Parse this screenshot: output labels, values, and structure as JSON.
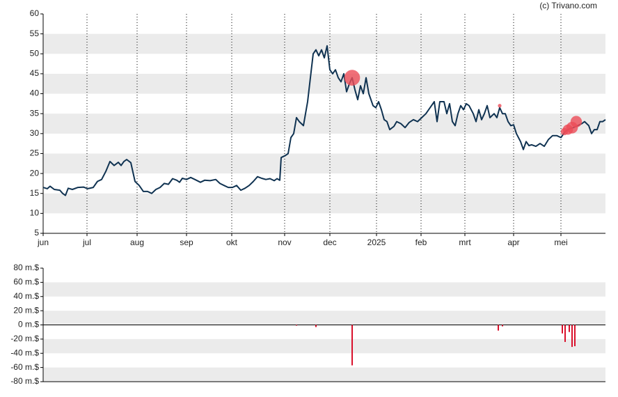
{
  "credit": "(c) Trivano.com",
  "chart_data": [
    {
      "type": "line",
      "xlim": [
        0,
        404
      ],
      "xticks": [
        {
          "value": 0,
          "label": "jun"
        },
        {
          "value": 31.5,
          "label": "jul"
        },
        {
          "value": 67.5,
          "label": "aug"
        },
        {
          "value": 103,
          "label": "sep"
        },
        {
          "value": 135.5,
          "label": "okt"
        },
        {
          "value": 173.5,
          "label": "nov"
        },
        {
          "value": 206,
          "label": "dec"
        },
        {
          "value": 239.5,
          "label": "2025"
        },
        {
          "value": 271.5,
          "label": "feb"
        },
        {
          "value": 303,
          "label": "mrt"
        },
        {
          "value": 338,
          "label": "apr"
        },
        {
          "value": 372,
          "label": "mei"
        }
      ],
      "ylim": [
        5,
        60
      ],
      "yticks": [
        5,
        10,
        15,
        20,
        25,
        30,
        35,
        40,
        45,
        50,
        55,
        60
      ],
      "grid": true,
      "series": [
        {
          "color": "#0f3251",
          "x": [
            0,
            3,
            5,
            8,
            12,
            14,
            16,
            18,
            21,
            25,
            29,
            32,
            36,
            39,
            42,
            45,
            48,
            51,
            54,
            56,
            58,
            60,
            63,
            66,
            69,
            72,
            75,
            78,
            81,
            84,
            87,
            90,
            93,
            96,
            98,
            100,
            103,
            106,
            109,
            113,
            116,
            120,
            124,
            127,
            130,
            133,
            136,
            139,
            142,
            145,
            148,
            151,
            154,
            157,
            160,
            163,
            166,
            168,
            170,
            171,
            174,
            176,
            178,
            180,
            182,
            184,
            187,
            190,
            192,
            194,
            196,
            198,
            200,
            202,
            204,
            206,
            208,
            210,
            212,
            214,
            216,
            218,
            220,
            222,
            224,
            226,
            228,
            230,
            232,
            234,
            237,
            239,
            241,
            243,
            245,
            247,
            249,
            252,
            254,
            257,
            260,
            263,
            266,
            269,
            272,
            275,
            278,
            281,
            283,
            285,
            288,
            290,
            292,
            294,
            296,
            298,
            300,
            302,
            304,
            306,
            309,
            311,
            313,
            315,
            317,
            319,
            321,
            324,
            326,
            328,
            330,
            332,
            334,
            336,
            338,
            340,
            343,
            345,
            347,
            349,
            351,
            354,
            357,
            360,
            363,
            366,
            369,
            372,
            375,
            378,
            381,
            384,
            387,
            389,
            392,
            394,
            396,
            398,
            400,
            402,
            404
          ],
          "values": [
            16.5,
            16.2,
            16.8,
            16,
            15.8,
            15,
            14.5,
            16.3,
            16,
            16.5,
            16.6,
            16.2,
            16.5,
            18,
            18.5,
            20.5,
            23,
            22,
            22.8,
            22,
            23,
            23.5,
            22.7,
            18,
            17,
            15.5,
            15.5,
            15,
            16,
            16.5,
            17.5,
            17.3,
            18.7,
            18.3,
            17.8,
            18.8,
            18.5,
            19,
            18.5,
            17.8,
            18.3,
            18.2,
            18.5,
            17.5,
            17,
            16.5,
            16.5,
            17,
            15.8,
            16.3,
            17,
            18,
            19.2,
            18.8,
            18.5,
            18.7,
            18.2,
            18.7,
            18.3,
            24,
            24.5,
            25,
            29,
            30,
            34,
            33,
            32,
            38,
            44,
            50,
            51,
            49.5,
            51,
            49,
            52,
            46,
            45,
            46,
            44,
            43,
            45,
            40.5,
            42.5,
            44,
            41,
            38.5,
            42,
            40,
            44,
            40,
            37,
            36.5,
            38,
            36,
            33.5,
            33,
            31,
            31.8,
            33,
            32.5,
            31.5,
            32.8,
            33.5,
            33,
            34,
            35,
            36.5,
            38,
            33,
            38,
            38,
            35,
            37.5,
            33,
            32,
            35,
            37,
            36,
            37.5,
            37,
            35,
            33,
            36,
            33.5,
            35,
            37,
            34,
            35,
            34,
            36.5,
            35,
            35,
            33,
            32,
            32.2,
            30,
            28,
            26,
            28,
            27,
            27.2,
            26.8,
            27.5,
            26.8,
            28.5,
            29.5,
            29.5,
            29,
            30.5,
            31.2,
            31.5,
            32,
            32.5,
            33,
            32,
            30,
            31,
            31,
            33,
            33,
            33.5
          ]
        }
      ],
      "bubbles": {
        "color": "#ec4c58",
        "x": [
          222,
          328,
          374.5,
          377,
          380,
          383
        ],
        "values": [
          44,
          37,
          30.5,
          31,
          31.5,
          33
        ],
        "sizes": [
          57,
          3,
          12,
          24,
          31,
          30
        ]
      }
    },
    {
      "type": "bar",
      "xlim": [
        0,
        404
      ],
      "ylim": [
        -80,
        80
      ],
      "yticks": [
        {
          "value": -80,
          "label": "-80 m.$"
        },
        {
          "value": -60,
          "label": "-60 m.$"
        },
        {
          "value": -40,
          "label": "-40 m.$"
        },
        {
          "value": -20,
          "label": "-20 m.$"
        },
        {
          "value": 0,
          "label": "0 m.$"
        },
        {
          "value": 20,
          "label": "20 m.$"
        },
        {
          "value": 40,
          "label": "40 m.$"
        },
        {
          "value": 60,
          "label": "60 m.$"
        },
        {
          "value": 80,
          "label": "80 m.$"
        }
      ],
      "grid": true,
      "color": "#d9102b",
      "x": [
        182,
        196,
        222,
        327,
        330,
        373,
        375,
        378,
        380,
        382
      ],
      "values": [
        -1,
        -3,
        -57,
        -8,
        -2,
        -12,
        -24,
        -10,
        -31,
        -30
      ]
    }
  ]
}
